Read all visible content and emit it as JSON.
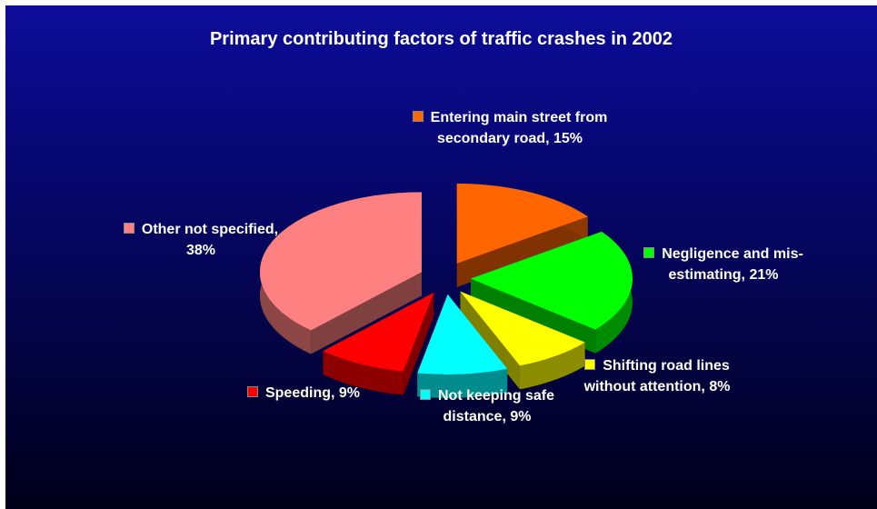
{
  "chart_data": {
    "type": "pie3d",
    "title": "Primary contributing factors of traffic crashes in 2002",
    "values": [
      15,
      21,
      8,
      9,
      9,
      38
    ],
    "value_labels": [
      "Entering main street from secondary road, 15%",
      "Negligence and mis-estimating, 21%",
      "Shifting road lines without attention, 8%",
      "Not keeping safe distance, 9%",
      "Speeding, 9%",
      "Other not specified, 38%"
    ],
    "colors": [
      "#ff6600",
      "#00ff00",
      "#ffff00",
      "#00ffff",
      "#ff0000",
      "#ff8080"
    ]
  }
}
